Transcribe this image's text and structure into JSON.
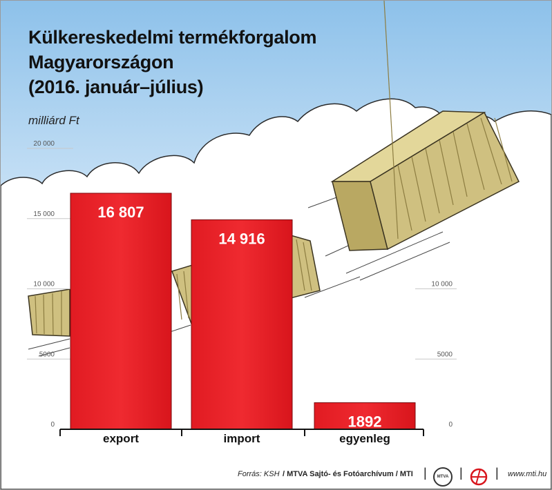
{
  "title_lines": [
    "Külkereskedelmi termékforgalom",
    "Magyarországon",
    "(2016. január–július)"
  ],
  "unit": "milliárd Ft",
  "chart_data": {
    "type": "bar",
    "title": "Külkereskedelmi termékforgalom Magyarországon (2016. január–július)",
    "ylabel": "milliárd Ft",
    "categories": [
      "export",
      "import",
      "egyenleg"
    ],
    "values": [
      16807,
      14916,
      1892
    ],
    "value_labels": [
      "16 807",
      "14 916",
      "1892"
    ],
    "ylim": [
      0,
      20000
    ],
    "left_axis_ticks": [
      {
        "value": 0,
        "label": "0"
      },
      {
        "value": 5000,
        "label": "5000"
      },
      {
        "value": 10000,
        "label": "10 000"
      },
      {
        "value": 15000,
        "label": "15 000"
      },
      {
        "value": 20000,
        "label": "20 000"
      }
    ],
    "right_axis_ticks": [
      {
        "value": 0,
        "label": "0"
      },
      {
        "value": 5000,
        "label": "5000"
      },
      {
        "value": 10000,
        "label": "10 000"
      }
    ],
    "bar_color": "#e41e26",
    "grid": true
  },
  "footer": {
    "source_prefix": "Forrás: KSH",
    "source_rest": " / MTVA Sajtó- és Fotóarchívum / MTI",
    "mtva_logo_text": "MTVA",
    "website": "www.mti.hu"
  },
  "colors": {
    "sky": "#a8cff0",
    "cloud": "#ffffff",
    "container": "#cfc080",
    "container_dark": "#a39150",
    "text": "#111111"
  }
}
